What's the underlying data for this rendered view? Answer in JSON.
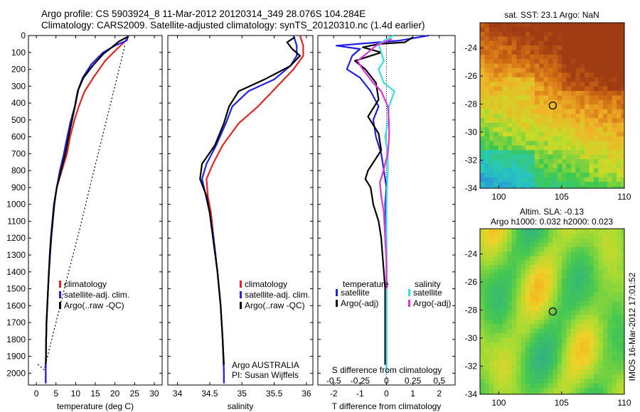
{
  "header": {
    "line1": "Argo profile: CS 5903924_8 11-Mar-2012 20120314_349 28.076S 104.284E",
    "line2": "Climatology: CARS2009. Satellite-adjusted climatology: synTS_20120310.nc (1.4d earlier)"
  },
  "colors": {
    "climatology": "#e8231f",
    "satellite": "#2020e8",
    "argo": "#000000",
    "satellite_salinity": "#33e0e0",
    "argo_salinity": "#e030e0"
  },
  "chart_data": [
    {
      "type": "line",
      "id": "temperature",
      "xlabel": "temperature (deg C)",
      "xlim": [
        -2,
        32
      ],
      "ylim": [
        2070,
        0
      ],
      "xticks": [
        0,
        5,
        10,
        15,
        20,
        25,
        30
      ],
      "yticks": [
        0,
        100,
        200,
        300,
        400,
        500,
        600,
        700,
        800,
        900,
        1000,
        1100,
        1200,
        1300,
        1400,
        1500,
        1600,
        1700,
        1800,
        1900,
        2000
      ],
      "legend": [
        "climatology",
        "satellite-adj. clim.",
        "Argo(..raw -QC)"
      ],
      "series": [
        {
          "name": "climatology",
          "color": "climatology",
          "points": [
            [
              23.3,
              0
            ],
            [
              22.8,
              30
            ],
            [
              20.5,
              80
            ],
            [
              17.5,
              150
            ],
            [
              14.5,
              250
            ],
            [
              12.3,
              330
            ],
            [
              10.8,
              420
            ],
            [
              9.7,
              500
            ],
            [
              8.6,
              600
            ],
            [
              7.8,
              700
            ],
            [
              6.5,
              800
            ],
            [
              5.2,
              900
            ],
            [
              4.6,
              1000
            ],
            [
              4.2,
              1100
            ],
            [
              3.8,
              1200
            ],
            [
              3.5,
              1300
            ],
            [
              3.2,
              1400
            ],
            [
              3.0,
              1500
            ],
            [
              2.8,
              1600
            ],
            [
              2.6,
              1700
            ],
            [
              2.5,
              1800
            ],
            [
              2.45,
              1900
            ],
            [
              2.4,
              2000
            ],
            [
              2.4,
              2060
            ]
          ]
        },
        {
          "name": "satellite-adj. clim.",
          "color": "satellite",
          "points": [
            [
              23.4,
              0
            ],
            [
              23.0,
              30
            ],
            [
              20.0,
              60
            ],
            [
              17.0,
              100
            ],
            [
              14.0,
              170
            ],
            [
              11.8,
              250
            ],
            [
              10.5,
              330
            ],
            [
              9.8,
              420
            ],
            [
              8.6,
              520
            ],
            [
              7.7,
              620
            ],
            [
              7.0,
              700
            ],
            [
              6.0,
              800
            ],
            [
              5.2,
              900
            ],
            [
              4.6,
              1000
            ],
            [
              4.2,
              1100
            ],
            [
              3.8,
              1200
            ],
            [
              3.5,
              1300
            ],
            [
              3.2,
              1400
            ],
            [
              3.0,
              1500
            ],
            [
              2.8,
              1600
            ],
            [
              2.6,
              1700
            ],
            [
              2.5,
              1800
            ],
            [
              2.45,
              1900
            ],
            [
              2.4,
              2000
            ],
            [
              2.4,
              2060
            ]
          ]
        },
        {
          "name": "Argo(..raw -QC)",
          "color": "argo",
          "points": [
            [
              23.5,
              5
            ],
            [
              22.6,
              15
            ],
            [
              21.0,
              35
            ],
            [
              19.2,
              70
            ],
            [
              17.0,
              110
            ],
            [
              14.3,
              180
            ],
            [
              12.0,
              250
            ],
            [
              10.7,
              320
            ],
            [
              10.0,
              400
            ],
            [
              9.1,
              500
            ],
            [
              8.2,
              600
            ],
            [
              7.4,
              700
            ],
            [
              6.3,
              800
            ],
            [
              5.2,
              900
            ],
            [
              4.5,
              1000
            ],
            [
              4.1,
              1100
            ],
            [
              3.7,
              1200
            ],
            [
              3.4,
              1300
            ],
            [
              3.2,
              1400
            ],
            [
              3.0,
              1500
            ],
            [
              2.8,
              1600
            ],
            [
              2.6,
              1700
            ],
            [
              2.5,
              1800
            ],
            [
              2.45,
              1900
            ],
            [
              2.4,
              1950
            ]
          ]
        },
        {
          "name": "freezing",
          "color": "argo",
          "dashed": true,
          "points": [
            [
              22.5,
              60
            ],
            [
              20,
              300
            ],
            [
              17,
              580
            ],
            [
              14,
              860
            ],
            [
              11,
              1150
            ],
            [
              8,
              1420
            ],
            [
              5,
              1700
            ],
            [
              2,
              1980
            ],
            [
              0,
              1940
            ]
          ]
        }
      ]
    },
    {
      "type": "line",
      "id": "salinity",
      "xlabel": "salinity",
      "xlim": [
        33.85,
        36.1
      ],
      "ylim": [
        2070,
        0
      ],
      "xticks": [
        34,
        34.5,
        35,
        35.5,
        36
      ],
      "legend": [
        "climatology",
        "satellite-adj. clim.",
        "Argo(..raw -QC)"
      ],
      "annotation": [
        "Argo AUSTRALIA",
        "PI: Susan Wijffels"
      ],
      "series": [
        {
          "name": "climatology",
          "color": "climatology",
          "points": [
            [
              35.9,
              0
            ],
            [
              35.95,
              60
            ],
            [
              35.95,
              120
            ],
            [
              35.8,
              200
            ],
            [
              35.55,
              300
            ],
            [
              35.25,
              420
            ],
            [
              34.95,
              520
            ],
            [
              34.7,
              650
            ],
            [
              34.55,
              760
            ],
            [
              34.45,
              850
            ],
            [
              34.47,
              950
            ],
            [
              34.52,
              1050
            ],
            [
              34.56,
              1200
            ],
            [
              34.62,
              1400
            ],
            [
              34.67,
              1600
            ],
            [
              34.7,
              1800
            ],
            [
              34.72,
              2000
            ],
            [
              34.72,
              2060
            ]
          ]
        },
        {
          "name": "satellite-adj. clim.",
          "color": "satellite",
          "points": [
            [
              35.8,
              0
            ],
            [
              35.85,
              60
            ],
            [
              35.85,
              120
            ],
            [
              35.75,
              180
            ],
            [
              35.5,
              260
            ],
            [
              35.1,
              330
            ],
            [
              34.85,
              420
            ],
            [
              34.75,
              520
            ],
            [
              34.6,
              650
            ],
            [
              34.45,
              760
            ],
            [
              34.38,
              850
            ],
            [
              34.44,
              950
            ],
            [
              34.5,
              1050
            ],
            [
              34.56,
              1200
            ],
            [
              34.62,
              1400
            ],
            [
              34.67,
              1600
            ],
            [
              34.7,
              1800
            ],
            [
              34.72,
              2000
            ],
            [
              34.72,
              2060
            ]
          ]
        },
        {
          "name": "Argo(..raw -QC)",
          "color": "argo",
          "points": [
            [
              35.82,
              10
            ],
            [
              35.7,
              40
            ],
            [
              35.78,
              80
            ],
            [
              35.9,
              120
            ],
            [
              35.75,
              180
            ],
            [
              35.35,
              260
            ],
            [
              34.95,
              330
            ],
            [
              34.8,
              420
            ],
            [
              34.72,
              520
            ],
            [
              34.58,
              650
            ],
            [
              34.38,
              760
            ],
            [
              34.35,
              850
            ],
            [
              34.45,
              950
            ],
            [
              34.5,
              1050
            ],
            [
              34.55,
              1200
            ],
            [
              34.62,
              1400
            ],
            [
              34.67,
              1600
            ],
            [
              34.7,
              1800
            ],
            [
              34.72,
              1950
            ]
          ]
        }
      ]
    },
    {
      "type": "line",
      "id": "difference",
      "xlabel": "T difference from climatology",
      "top_label": "S difference from climatology",
      "xlim": [
        -2.6,
        2.6
      ],
      "ylim": [
        2070,
        0
      ],
      "xticks": [
        -2,
        -1,
        0,
        1,
        2
      ],
      "top_ticks": [
        "-0.5",
        "-0.25",
        "0",
        "0.25",
        "0.5"
      ],
      "zero_line": true,
      "legend_left_title": "temperature",
      "legend_right_title": "salinity",
      "legend_left": [
        "satellite",
        "Argo(-adj)"
      ],
      "legend_right": [
        "satellite",
        "Argo(-adj)"
      ],
      "series": [
        {
          "name": "T satellite",
          "color": "satellite",
          "points": [
            [
              1.6,
              0
            ],
            [
              0.5,
              30
            ],
            [
              -1.9,
              60
            ],
            [
              -1.0,
              80
            ],
            [
              -1.3,
              120
            ],
            [
              -1.5,
              200
            ],
            [
              -1.0,
              250
            ],
            [
              -0.6,
              330
            ],
            [
              -0.3,
              420
            ],
            [
              -0.5,
              500
            ],
            [
              -0.4,
              600
            ],
            [
              -0.2,
              700
            ],
            [
              -0.1,
              800
            ],
            [
              0,
              900
            ],
            [
              -0.05,
              1000
            ],
            [
              0,
              1200
            ],
            [
              0,
              1500
            ],
            [
              0,
              2000
            ]
          ]
        },
        {
          "name": "T Argo(-adj)",
          "color": "argo",
          "points": [
            [
              1.0,
              10
            ],
            [
              0.7,
              40
            ],
            [
              -0.3,
              50
            ],
            [
              -0.9,
              70
            ],
            [
              -0.2,
              100
            ],
            [
              -1.2,
              150
            ],
            [
              -0.8,
              200
            ],
            [
              -0.4,
              280
            ],
            [
              -0.3,
              380
            ],
            [
              -0.7,
              480
            ],
            [
              -0.3,
              580
            ],
            [
              -0.2,
              680
            ],
            [
              -0.7,
              800
            ],
            [
              -0.8,
              850
            ],
            [
              -0.6,
              900
            ],
            [
              -0.5,
              1000
            ],
            [
              -0.3,
              1100
            ],
            [
              -0.2,
              1200
            ],
            [
              -0.15,
              1300
            ],
            [
              -0.1,
              1400
            ],
            [
              -0.05,
              1500
            ],
            [
              -0.05,
              1600
            ],
            [
              -0.05,
              1800
            ],
            [
              -0.05,
              1950
            ]
          ]
        },
        {
          "name": "S satellite",
          "color": "satellite_salinity",
          "points": [
            [
              0.25,
              0
            ],
            [
              -0.3,
              50
            ],
            [
              -0.2,
              100
            ],
            [
              -0.1,
              150
            ],
            [
              -0.3,
              200
            ],
            [
              -0.1,
              280
            ],
            [
              0.3,
              330
            ],
            [
              0.1,
              420
            ],
            [
              0.05,
              520
            ],
            [
              -0.05,
              600
            ],
            [
              0.05,
              700
            ],
            [
              0.05,
              800
            ],
            [
              0.02,
              900
            ],
            [
              0,
              1000
            ],
            [
              0,
              1200
            ],
            [
              0,
              1500
            ],
            [
              0,
              2000
            ]
          ]
        },
        {
          "name": "S Argo(-adj)",
          "color": "argo_salinity",
          "points": [
            [
              0.2,
              20
            ],
            [
              -0.4,
              60
            ],
            [
              -0.7,
              100
            ],
            [
              -1.1,
              150
            ],
            [
              -0.9,
              200
            ],
            [
              -0.5,
              280
            ],
            [
              -0.2,
              330
            ],
            [
              0.05,
              420
            ],
            [
              0.1,
              520
            ],
            [
              0.1,
              600
            ],
            [
              0.05,
              700
            ],
            [
              -0.15,
              820
            ],
            [
              -0.25,
              870
            ],
            [
              -0.2,
              950
            ],
            [
              -0.1,
              1050
            ],
            [
              -0.05,
              1200
            ],
            [
              0,
              1350
            ],
            [
              0,
              1500
            ]
          ]
        }
      ]
    },
    {
      "type": "heatmap",
      "id": "sst_map",
      "title": "sat. SST: 23.1  Argo: NaN",
      "xlim": [
        98.5,
        110
      ],
      "ylim": [
        -34,
        -22.2
      ],
      "xticks": [
        100,
        105,
        110
      ],
      "yticks": [
        -24,
        -26,
        -28,
        -30,
        -32,
        -34
      ],
      "float_marker": [
        104.3,
        -28.1
      ]
    },
    {
      "type": "heatmap",
      "id": "sla_map",
      "title": [
        "Altim. SLA: -0.13",
        "Argo h1000: 0.032 h2000: 0.023"
      ],
      "xlim": [
        98.5,
        110
      ],
      "ylim": [
        -34,
        -22.2
      ],
      "xticks": [
        100,
        105,
        110
      ],
      "yticks": [
        -24,
        -26,
        -28,
        -30,
        -32,
        -34
      ],
      "float_marker": [
        104.3,
        -28.1
      ],
      "side_label": "IMOS 16-Mar-2012 17:01:52"
    }
  ]
}
